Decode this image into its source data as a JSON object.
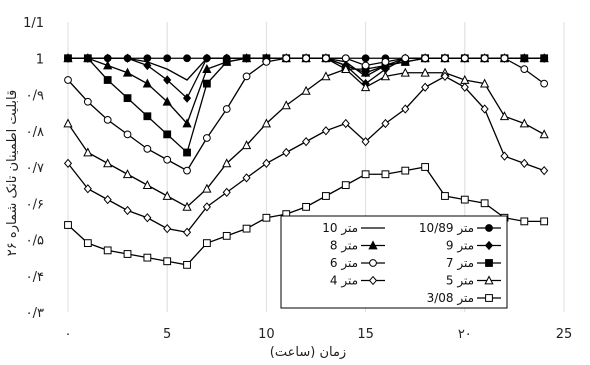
{
  "chart_data": {
    "type": "line",
    "xlabel": "زمان (ساعت)",
    "ylabel": "قابلیت اطمینان تانک شماره ۲۶",
    "xlim": [
      0,
      25
    ],
    "ylim": [
      0.3,
      1.1
    ],
    "x_ticks": [
      {
        "v": 0,
        "label": "۰"
      },
      {
        "v": 5,
        "label": "5"
      },
      {
        "v": 10,
        "label": "10"
      },
      {
        "v": 15,
        "label": "15"
      },
      {
        "v": 20,
        "label": "۲۰"
      },
      {
        "v": 25,
        "label": "25"
      }
    ],
    "y_ticks": [
      {
        "v": 0.3,
        "label": "۰/۳"
      },
      {
        "v": 0.4,
        "label": "۰/۴"
      },
      {
        "v": 0.5,
        "label": "۰/۵"
      },
      {
        "v": 0.6,
        "label": "۰/۶"
      },
      {
        "v": 0.7,
        "label": "۰/۷"
      },
      {
        "v": 0.8,
        "label": "۰/۸"
      },
      {
        "v": 0.9,
        "label": "۰/۹"
      },
      {
        "v": 1.0,
        "label": "1"
      },
      {
        "v": 1.1,
        "label": "1/1"
      }
    ],
    "grid": "vertical",
    "legend_position": "bottom-right",
    "x": [
      0,
      1,
      2,
      3,
      4,
      5,
      6,
      7,
      8,
      9,
      10,
      11,
      12,
      13,
      14,
      15,
      16,
      17,
      18,
      19,
      20,
      21,
      22,
      23,
      24
    ],
    "series": [
      {
        "name": "10/89 متر",
        "marker": "circle-filled",
        "legend_row": 0,
        "legend_col": 0,
        "values": [
          1,
          1,
          1,
          1,
          1,
          1,
          1,
          1,
          1,
          1,
          1,
          1,
          1,
          1,
          1,
          1,
          1,
          1,
          1,
          1,
          1,
          1,
          1,
          1,
          1
        ]
      },
      {
        "name": "10 متر",
        "marker": "none",
        "legend_row": 0,
        "legend_col": 1,
        "values": [
          1,
          1,
          1,
          1,
          0.99,
          0.97,
          0.94,
          1,
          1,
          1,
          1,
          1,
          1,
          1,
          0.99,
          0.95,
          0.98,
          1,
          1,
          1,
          1,
          1,
          1,
          1,
          1
        ]
      },
      {
        "name": "9 متر",
        "marker": "diamond-filled",
        "legend_row": 1,
        "legend_col": 0,
        "values": [
          1,
          1,
          1,
          1,
          0.98,
          0.94,
          0.89,
          1,
          1,
          1,
          1,
          1,
          1,
          1,
          0.98,
          0.93,
          0.97,
          1,
          1,
          1,
          1,
          1,
          1,
          1,
          1
        ]
      },
      {
        "name": "8 متر",
        "marker": "triangle-filled",
        "legend_row": 1,
        "legend_col": 1,
        "values": [
          1,
          1,
          0.98,
          0.96,
          0.93,
          0.88,
          0.82,
          0.97,
          0.99,
          1,
          1,
          1,
          1,
          1,
          0.98,
          0.96,
          0.98,
          0.99,
          1,
          1,
          1,
          1,
          1,
          1,
          1
        ]
      },
      {
        "name": "7 متر",
        "marker": "square-filled",
        "legend_row": 2,
        "legend_col": 0,
        "values": [
          1,
          1,
          0.94,
          0.89,
          0.84,
          0.79,
          0.74,
          0.93,
          0.99,
          1,
          1,
          1,
          1,
          1,
          0.97,
          0.97,
          0.98,
          0.99,
          1,
          1,
          1,
          1,
          1,
          1,
          1
        ]
      },
      {
        "name": "6 متر",
        "marker": "circle-open",
        "legend_row": 2,
        "legend_col": 1,
        "values": [
          0.94,
          0.88,
          0.83,
          0.79,
          0.75,
          0.72,
          0.69,
          0.78,
          0.86,
          0.95,
          0.99,
          1,
          1,
          1,
          1,
          0.98,
          0.99,
          1,
          1,
          1,
          1,
          1,
          1,
          0.97,
          0.93
        ]
      },
      {
        "name": "5 متر",
        "marker": "triangle-open",
        "legend_row": 3,
        "legend_col": 0,
        "values": [
          0.82,
          0.74,
          0.71,
          0.68,
          0.65,
          0.62,
          0.59,
          0.64,
          0.71,
          0.76,
          0.82,
          0.87,
          0.91,
          0.95,
          0.97,
          0.92,
          0.95,
          0.96,
          0.96,
          0.96,
          0.94,
          0.93,
          0.84,
          0.82,
          0.79
        ]
      },
      {
        "name": "4 متر",
        "marker": "diamond-open",
        "legend_row": 3,
        "legend_col": 1,
        "values": [
          0.71,
          0.64,
          0.61,
          0.58,
          0.56,
          0.53,
          0.52,
          0.59,
          0.63,
          0.67,
          0.71,
          0.74,
          0.77,
          0.8,
          0.82,
          0.77,
          0.82,
          0.86,
          0.92,
          0.95,
          0.92,
          0.86,
          0.73,
          0.71,
          0.69
        ]
      },
      {
        "name": "3/08 متر",
        "marker": "square-open",
        "legend_row": 4,
        "legend_col": 0,
        "values": [
          0.54,
          0.49,
          0.47,
          0.46,
          0.45,
          0.44,
          0.43,
          0.49,
          0.51,
          0.53,
          0.56,
          0.57,
          0.59,
          0.62,
          0.65,
          0.68,
          0.68,
          0.69,
          0.7,
          0.62,
          0.61,
          0.6,
          0.56,
          0.55,
          0.55
        ]
      }
    ]
  }
}
